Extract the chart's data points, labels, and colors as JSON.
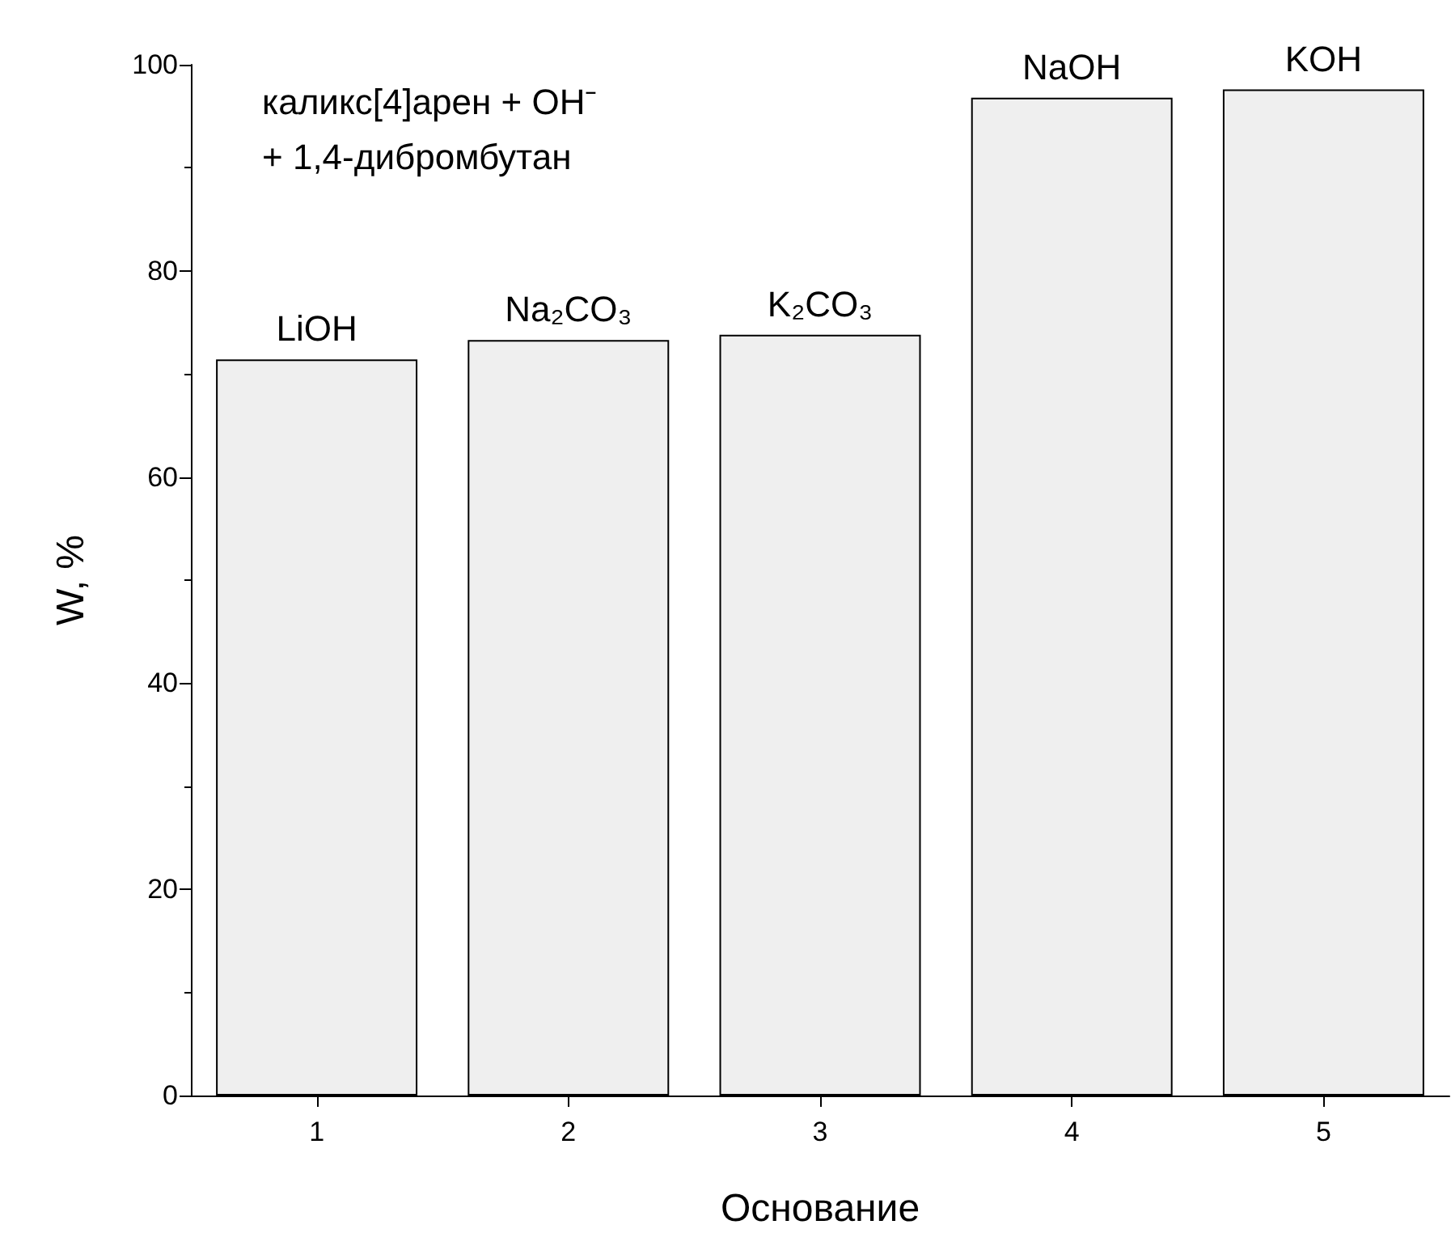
{
  "chart_data": {
    "type": "bar",
    "xlabel": "Основание",
    "ylabel": "W, %",
    "categories": [
      "1",
      "2",
      "3",
      "4",
      "5"
    ],
    "values": [
      71.4,
      73.3,
      73.8,
      96.8,
      97.6
    ],
    "color": "#efefef",
    "ylim": [
      0,
      100
    ],
    "yticks": [
      0,
      20,
      40,
      60,
      80,
      100
    ],
    "grid": false,
    "annotations": [
      "каликс[4]арен + OH⁻\n+ 1,4-дибромбутан",
      {
        "text": "LiOH",
        "x": "1",
        "y": 71.4
      },
      {
        "text": "Na₂CO₃",
        "x": "2",
        "y": 73.3
      },
      {
        "text": "K₂CO₃",
        "x": "3",
        "y": 73.8
      },
      {
        "text": "NaOH",
        "x": "4",
        "y": 96.8
      },
      {
        "text": "KOH",
        "x": "5",
        "y": 97.6
      }
    ]
  }
}
